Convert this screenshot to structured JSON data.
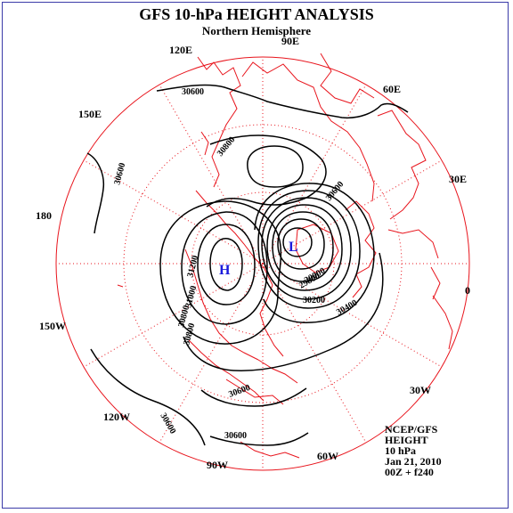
{
  "title": "GFS 10-hPa HEIGHT ANALYSIS",
  "subtitle": "Northern Hemisphere",
  "longitude_labels": [
    "90E",
    "60E",
    "30E",
    "0",
    "30W",
    "60W",
    "90W",
    "120W",
    "150W",
    "180",
    "150E",
    "120E"
  ],
  "contour_labels": [
    "30600",
    "30800",
    "30600",
    "30600",
    "31200",
    "31000",
    "30800",
    "30800",
    "29800",
    "30000",
    "30200",
    "30400",
    "30600",
    "30600",
    "30600"
  ],
  "centers": {
    "high": "H",
    "low": "L"
  },
  "info": {
    "source": "NCEP/GFS",
    "field": "HEIGHT",
    "level": "10 hPa",
    "date": "Jan 21, 2010",
    "run": "00Z + f240"
  },
  "colors": {
    "map": "#e8141c",
    "contour": "#000000",
    "frame": "#3b3ba8",
    "centers": "#1a1adb"
  }
}
